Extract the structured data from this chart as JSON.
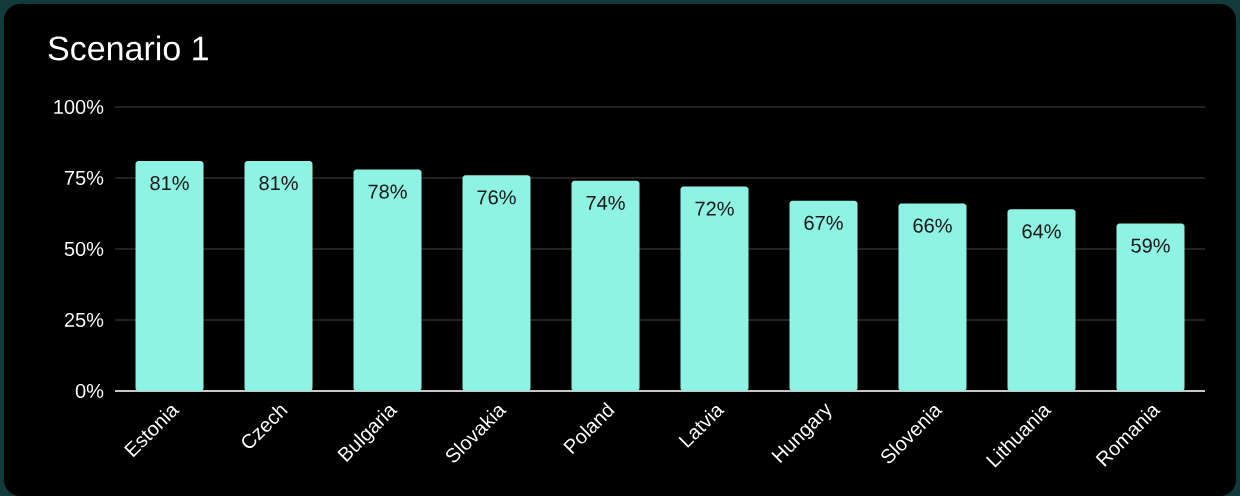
{
  "chart_data": {
    "type": "bar",
    "title": "Scenario 1",
    "categories": [
      "Estonia",
      "Czech",
      "Bulgaria",
      "Slovakia",
      "Poland",
      "Latvia",
      "Hungary",
      "Slovenia",
      "Lithuania",
      "Romania"
    ],
    "values": [
      81,
      81,
      78,
      76,
      74,
      72,
      67,
      66,
      64,
      59
    ],
    "value_labels": [
      "81%",
      "81%",
      "78%",
      "76%",
      "74%",
      "72%",
      "67%",
      "66%",
      "64%",
      "59%"
    ],
    "color": "#8ef3e3",
    "ylim": [
      0,
      100
    ],
    "yticks": [
      {
        "value": 0,
        "label": "0%"
      },
      {
        "value": 25,
        "label": "25%"
      },
      {
        "value": 50,
        "label": "50%"
      },
      {
        "value": 75,
        "label": "75%"
      },
      {
        "value": 100,
        "label": "100%"
      }
    ],
    "grid": "y"
  }
}
